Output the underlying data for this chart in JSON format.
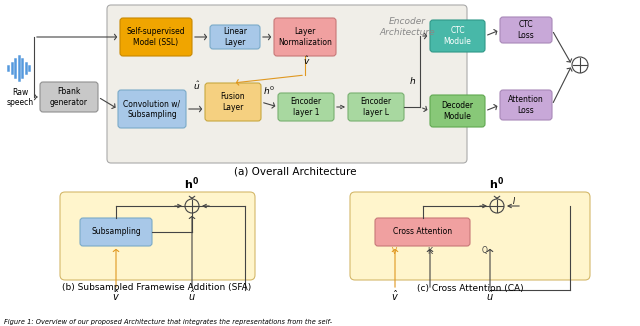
{
  "fig_width": 6.4,
  "fig_height": 3.26,
  "dpi": 100,
  "bg_color": "#ffffff",
  "caption": "Figure 1: Overview of our proposed Architecture that integrates the representations from the self-",
  "subfig_a_label": "(a) Overall Architecture",
  "subfig_b_label": "(b) Subsampled Framewise Addition (SFA)",
  "subfig_c_label": "(c) Cross Attention (CA)",
  "encoder_arch_label": "Encoder\nArchitecture",
  "colors": {
    "ssl_box": "#F0A500",
    "ssl_border": "#C88800",
    "linear_box": "#A8C8E8",
    "linear_border": "#7AAAC8",
    "layer_norm_box": "#F0A0A0",
    "layer_norm_border": "#C87878",
    "fusion_box": "#F5D080",
    "fusion_border": "#C8A840",
    "encoder_box": "#A8D8A0",
    "encoder_border": "#78B070",
    "fbank_box": "#C8C8C8",
    "fbank_border": "#909090",
    "conv_box": "#A8C8E8",
    "conv_border": "#7AAAC8",
    "ctc_module_box": "#48B8A8",
    "ctc_module_border": "#309888",
    "ctc_loss_box": "#C8A8D8",
    "ctc_loss_border": "#A888B8",
    "decoder_module_box": "#88C878",
    "decoder_module_border": "#60A850",
    "attn_loss_box": "#C8A8D8",
    "attn_loss_border": "#A888B8",
    "subsampling_box": "#A8C8E8",
    "subsampling_border": "#7AAAC8",
    "cross_attn_box": "#F0A0A0",
    "cross_attn_border": "#C87878",
    "outer_enc_bg": "#F0EEE8",
    "outer_enc_border": "#AAAAAA",
    "sfa_bg": "#FFF5CC",
    "sfa_border": "#D4B86A",
    "ca_bg": "#FFF5CC",
    "ca_border": "#D4B86A",
    "arrow_dark": "#444444",
    "arrow_orange": "#E09820",
    "plus_circle": "#444444"
  }
}
